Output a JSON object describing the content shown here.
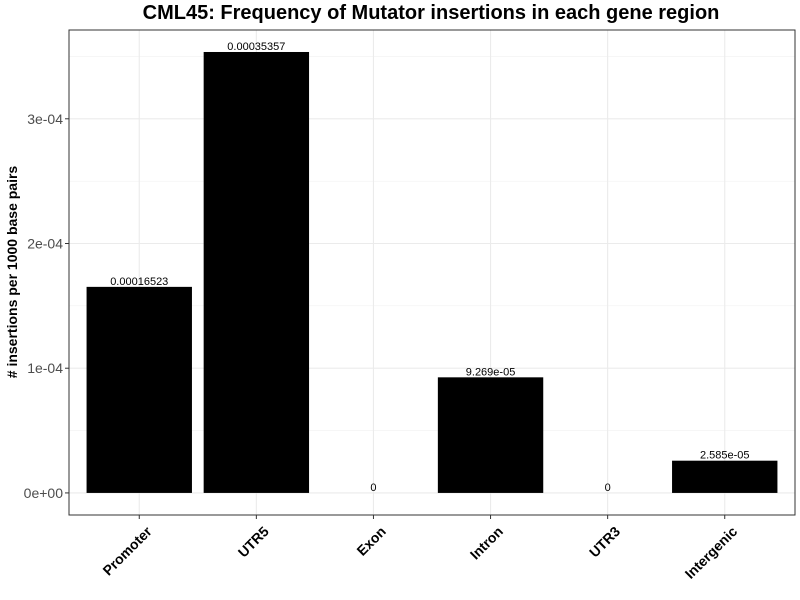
{
  "chart_data": {
    "type": "bar",
    "title": "CML45: Frequency of Mutator insertions in each gene region",
    "xlabel": "",
    "ylabel": "# insertions per 1000 base pairs",
    "categories": [
      "Promoter",
      "UTR5",
      "Exon",
      "Intron",
      "UTR3",
      "Intergenic"
    ],
    "values": [
      0.00016523,
      0.00035357,
      0,
      9.269e-05,
      0,
      2.585e-05
    ],
    "data_labels": [
      "0.00016523",
      "0.00035357",
      "0",
      "9.269e-05",
      "0",
      "2.585e-05"
    ],
    "yticks": [
      0,
      0.0001,
      0.0002,
      0.0003
    ],
    "ytick_labels": [
      "0e+00",
      "1e-04",
      "2e-04",
      "3e-04"
    ],
    "ylim": [
      -1.77e-05,
      0.0003712
    ],
    "bar_color": "#000000",
    "grid": true,
    "legend": "none"
  }
}
